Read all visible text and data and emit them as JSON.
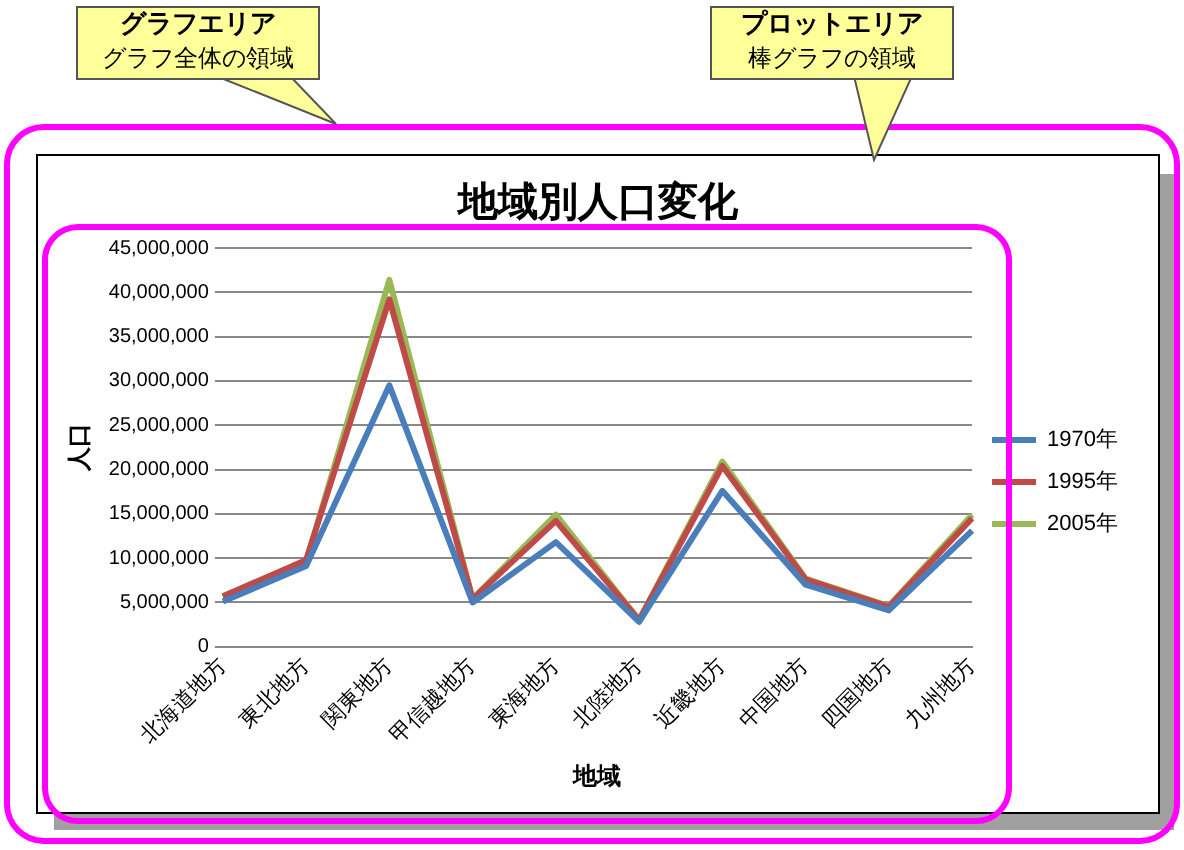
{
  "chart_data": {
    "type": "line",
    "title": "地域別人口変化",
    "xlabel": "地域",
    "ylabel": "人口",
    "categories": [
      "北海道地方",
      "東北地方",
      "関東地方",
      "甲信越地方",
      "東海地方",
      "北陸地方",
      "近畿地方",
      "中国地方",
      "四国地方",
      "九州地方"
    ],
    "series": [
      {
        "name": "1970年",
        "color": "#4a7ebb",
        "values": [
          5100000,
          9100000,
          29500000,
          5000000,
          11800000,
          2800000,
          17600000,
          7000000,
          4100000,
          13100000
        ]
      },
      {
        "name": "1995年",
        "color": "#be4b48",
        "values": [
          5700000,
          9800000,
          39200000,
          5400000,
          14200000,
          3000000,
          20400000,
          7600000,
          4500000,
          14500000
        ]
      },
      {
        "name": "2005年",
        "color": "#98b954",
        "values": [
          5600000,
          9600000,
          41400000,
          5400000,
          14900000,
          3000000,
          20900000,
          7700000,
          4600000,
          14900000
        ]
      }
    ],
    "ylim": [
      0,
      45000000
    ],
    "yticks": [
      0,
      {
        "value": 5000000,
        "label": "5,000,000"
      },
      {
        "value": 10000000,
        "label": "10,000,000"
      },
      {
        "value": 15000000,
        "label": "15,000,000"
      },
      {
        "value": 20000000,
        "label": "20,000,000"
      },
      {
        "value": 25000000,
        "label": "25,000,000"
      },
      {
        "value": 30000000,
        "label": "30,000,000"
      },
      {
        "value": 35000000,
        "label": "35,000,000"
      },
      {
        "value": 40000000,
        "label": "40,000,000"
      },
      {
        "value": 45000000,
        "label": "45,000,000"
      }
    ],
    "grid": "y",
    "legend": "right",
    "marker": "none",
    "line_style": "solid",
    "annotations": [
      "グラフエリア",
      "グラフ全体の領域",
      "プロットエリア",
      "棒グラフの領域"
    ]
  }
}
